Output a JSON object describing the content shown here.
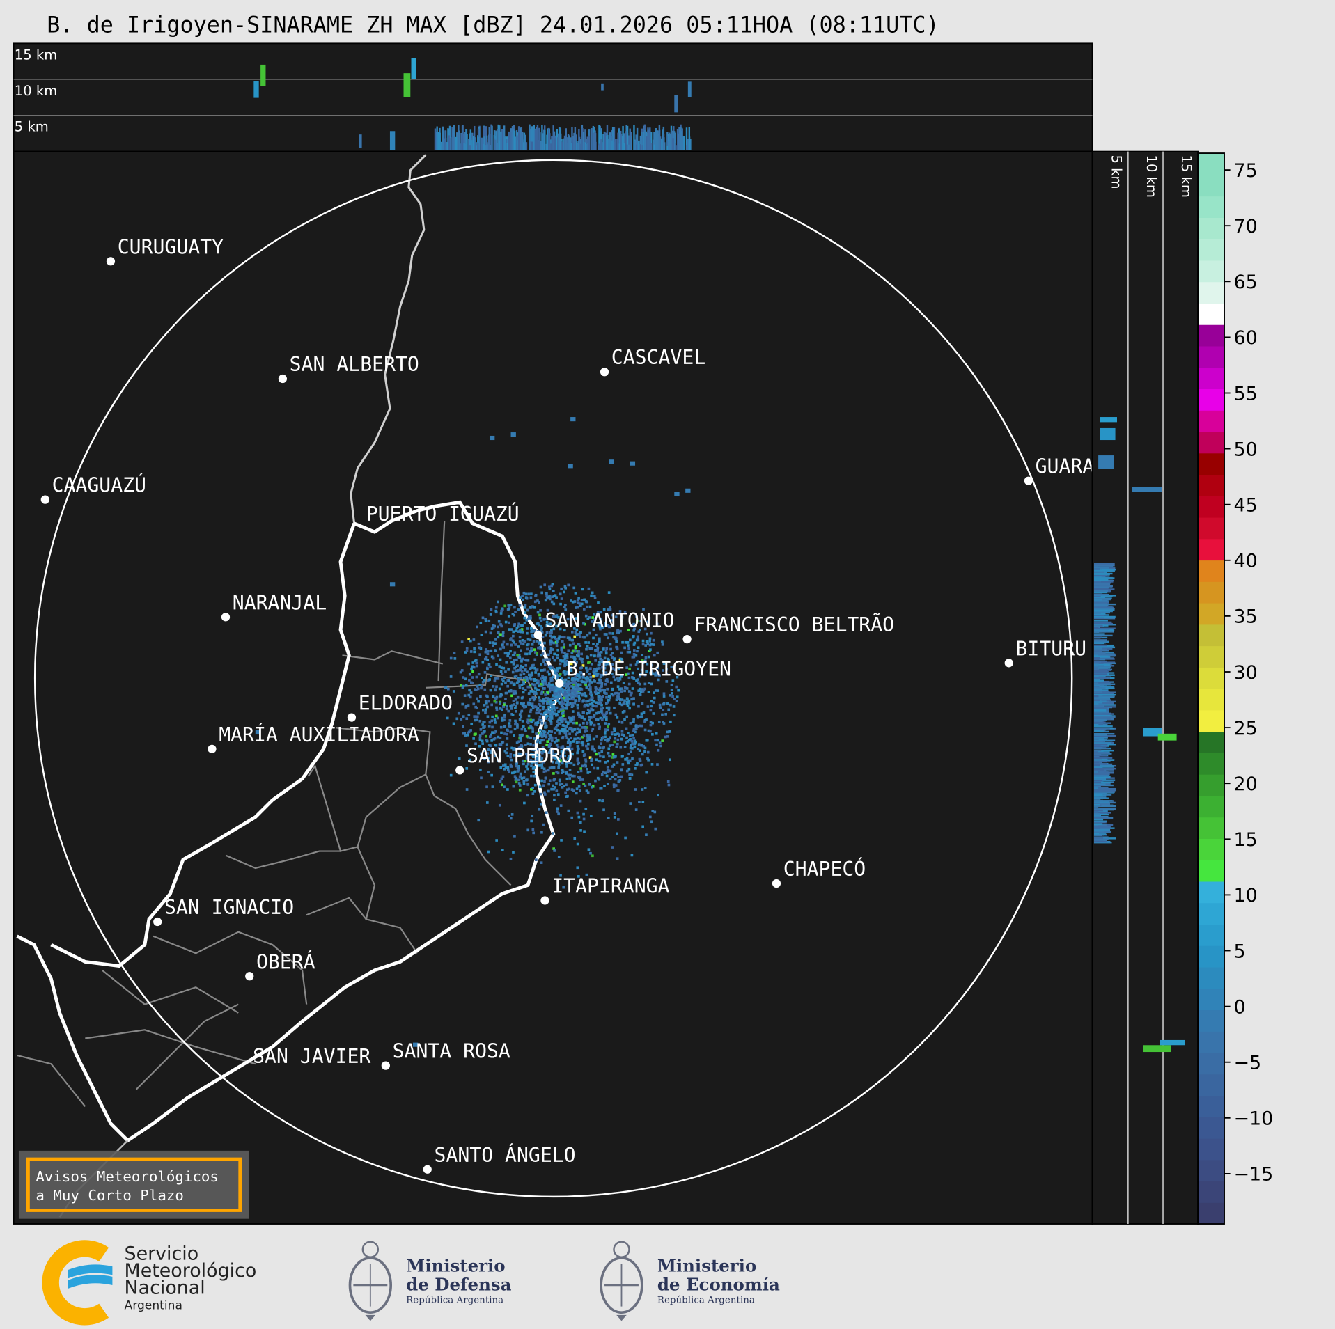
{
  "title": "B. de Irigoyen-SINARAME ZH MAX [dBZ] 24.01.2026 05:11HOA (08:11UTC)",
  "top_panel": {
    "height_labels": [
      "15 km",
      "10 km",
      "5 km"
    ]
  },
  "side_panel": {
    "height_labels": [
      "5 km",
      "10 km",
      "15 km"
    ]
  },
  "colorbar": {
    "unit": "dBZ",
    "range": [
      -19.5,
      76.5
    ],
    "ticks": [
      "75",
      "70",
      "65",
      "60",
      "55",
      "50",
      "45",
      "40",
      "35",
      "30",
      "25",
      "20",
      "15",
      "10",
      "5",
      "0",
      "−5",
      "−10",
      "−15"
    ],
    "colors": [
      "#3a3f6e",
      "#3b4578",
      "#3c4c82",
      "#3c528b",
      "#3b5892",
      "#3a5f99",
      "#3a669f",
      "#3a6da5",
      "#3974ab",
      "#357bb1",
      "#3083b8",
      "#2c8bbe",
      "#2894c6",
      "#2a9dcd",
      "#2ea6d4",
      "#34b0db",
      "#45e63e",
      "#4ad43a",
      "#45c236",
      "#3cb032",
      "#369e2e",
      "#2e8b2a",
      "#267526",
      "#f2ee40",
      "#e7e63c",
      "#dcdc3a",
      "#cfcd38",
      "#c4bf36",
      "#d2a726",
      "#d69520",
      "#e0841c",
      "#e8103c",
      "#d00a2c",
      "#c00020",
      "#b00010",
      "#980000",
      "#c0005a",
      "#d8009a",
      "#e800e8",
      "#cc00cc",
      "#b000b0",
      "#980098",
      "#ffffff",
      "#e0f5ec",
      "#c8f0e0",
      "#b6ecd6",
      "#a8e8ce",
      "#98e4c8",
      "#8adec0",
      "#8adec0"
    ]
  },
  "cities": [
    "CURUGUATY",
    "SAN ALBERTO",
    "CASCAVEL",
    "CAAGUAZÚ",
    "GUARA",
    "PUERTO IGUAZÚ",
    "NARANJAL",
    "SAN ANTONIO",
    "FRANCISCO BELTRÃO",
    "BITURU",
    "B. DE IRIGOYEN",
    "ELDORADO",
    "MARÍA AUXILIADORA",
    "SAN PEDRO",
    "CHAPECÓ",
    "ITAPIRANGA",
    "SAN IGNACIO",
    "OBERÁ",
    "SAN JAVIER",
    "SANTA ROSA",
    "SANTO ÁNGELO"
  ],
  "warning_box": {
    "line1": "Avisos Meteorológicos",
    "line2": "a Muy Corto Plazo",
    "border_color": "#ffa500"
  },
  "logos": {
    "smn": {
      "line1": "Servicio",
      "line2": "Meteorológico",
      "line3": "Nacional",
      "line4": "Argentina"
    },
    "defensa": {
      "line1": "Ministerio",
      "line2": "de Defensa",
      "line3": "República Argentina"
    },
    "economia": {
      "line1": "Ministerio",
      "line2": "de Economía",
      "line3": "República Argentina"
    }
  },
  "colors": {
    "background": "#1a1a1a",
    "figure": "#e6e6e6",
    "range_ring": "#ffffff",
    "accent_orange": "#ffa500",
    "smn_blue": "#2aa3dd",
    "smn_orange": "#fbb200",
    "ministry_navy": "#2b3558"
  }
}
